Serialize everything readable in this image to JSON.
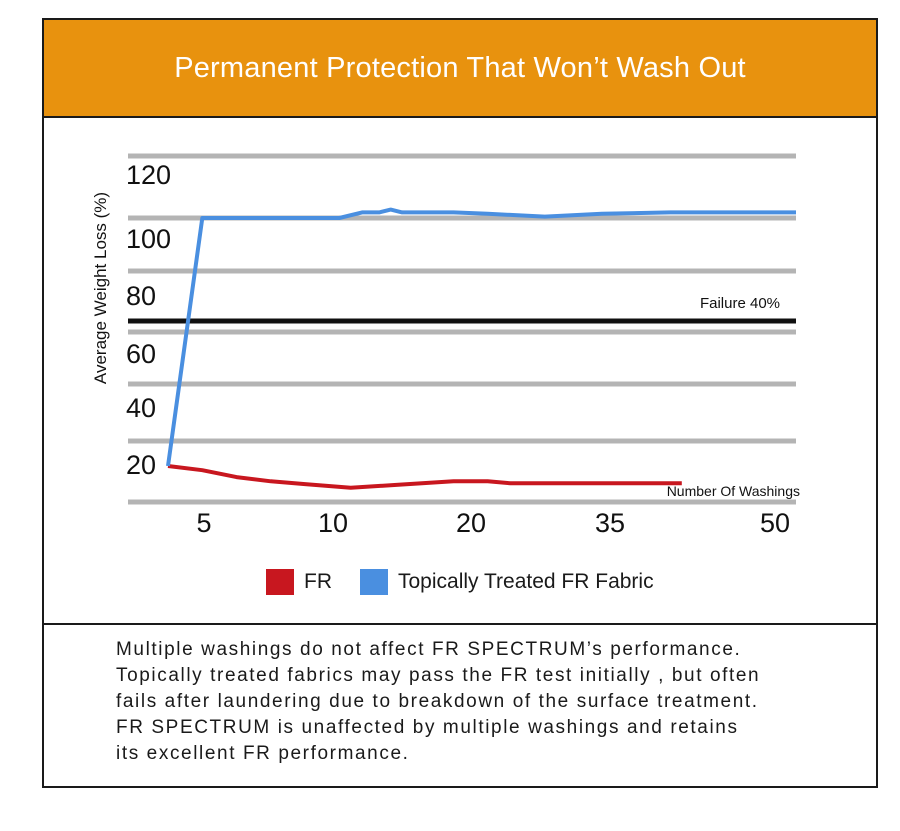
{
  "header": {
    "title": "Permanent Protection That Won’t Wash Out"
  },
  "colors": {
    "header_bg": "#e8920e",
    "fr": "#c8171f",
    "topical": "#4a8fe0",
    "grid": "#b4b4b4",
    "failure": "#111111"
  },
  "chart_data": {
    "type": "line",
    "ylabel": "Average Weight Loss (%)",
    "xlabel": "Number Of  Washings",
    "y_ticks": [
      "120",
      "100",
      "80",
      "60",
      "40",
      "20"
    ],
    "x_ticks": [
      "5",
      "10",
      "20",
      "35",
      "50"
    ],
    "reference_line": {
      "label": "Failure 40%"
    },
    "series": [
      {
        "name": "FR",
        "color": "#c8171f",
        "points": [
          [
            0,
            13
          ],
          [
            3,
            11.5
          ],
          [
            6,
            9
          ],
          [
            9,
            7.5
          ],
          [
            12,
            6.5
          ],
          [
            16,
            5.2
          ],
          [
            20,
            6.2
          ],
          [
            25,
            7.5
          ],
          [
            28,
            7.5
          ],
          [
            30,
            6.8
          ],
          [
            40,
            6.8
          ],
          [
            45,
            6.8
          ]
        ]
      },
      {
        "name": "Topically Treated FR Fabric",
        "color": "#4a8fe0",
        "points": [
          [
            0,
            13
          ],
          [
            3,
            102
          ],
          [
            10,
            102
          ],
          [
            15,
            102
          ],
          [
            17,
            104
          ],
          [
            18.5,
            104
          ],
          [
            19.5,
            105
          ],
          [
            20.5,
            104
          ],
          [
            25,
            104
          ],
          [
            28,
            103.5
          ],
          [
            33,
            102.5
          ],
          [
            38,
            103.5
          ],
          [
            44,
            104
          ],
          [
            55,
            104
          ]
        ]
      }
    ],
    "grid": true,
    "legend_position": "bottom"
  },
  "legend": {
    "items": [
      {
        "label": "FR"
      },
      {
        "label": "Topically Treated FR Fabric"
      }
    ]
  },
  "footer": {
    "lines": [
      "Multiple washings do  not affect FR SPECTRUM’s performance.",
      "Topically treated fabrics may pass the FR test initially , but often",
      "fails after laundering due to breakdown of the surface treatment.",
      "FR SPECTRUM is unaffected by multiple washings and retains",
      "its excellent FR performance."
    ]
  }
}
